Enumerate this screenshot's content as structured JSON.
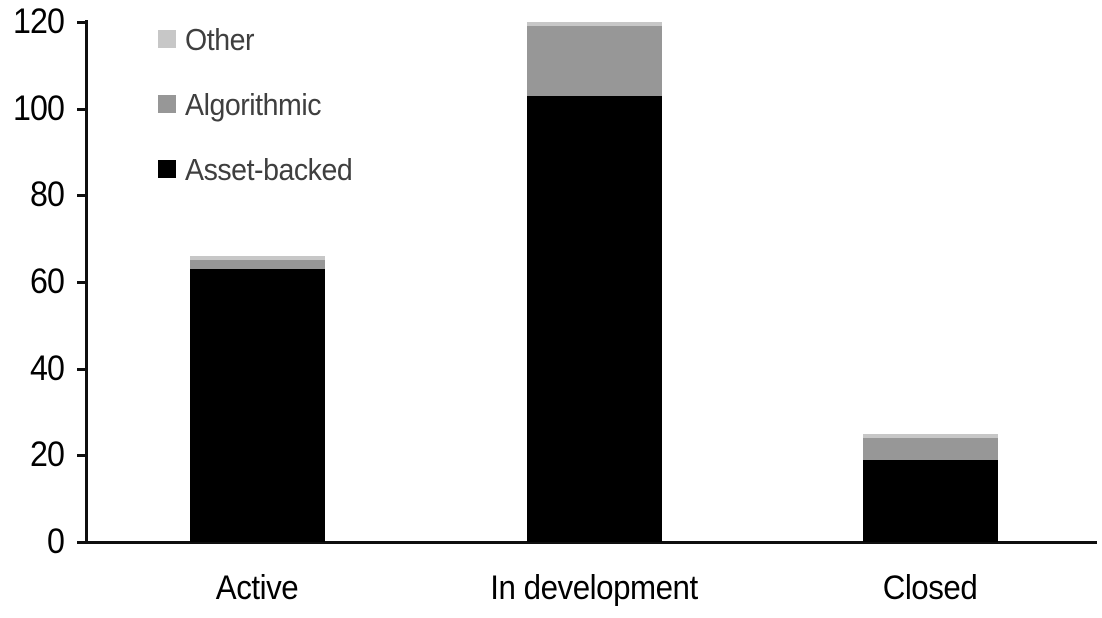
{
  "chart_data": {
    "type": "bar",
    "stacked": true,
    "title": "",
    "xlabel": "",
    "ylabel": "",
    "categories": [
      "Active",
      "In development",
      "Closed"
    ],
    "series": [
      {
        "name": "Asset-backed",
        "color": "#000000",
        "values": [
          63,
          103,
          19
        ]
      },
      {
        "name": "Algorithmic",
        "color": "#979797",
        "values": [
          2,
          16,
          5
        ]
      },
      {
        "name": "Other",
        "color": "#C7C7C7",
        "values": [
          1,
          1,
          1
        ]
      }
    ],
    "totals": [
      66,
      120,
      25
    ],
    "y_axis": {
      "ticks": [
        0,
        20,
        40,
        60,
        80,
        100,
        120
      ],
      "ylim": [
        0,
        120
      ],
      "grid": false
    },
    "legend": {
      "position": "top-left",
      "order": [
        "Other",
        "Algorithmic",
        "Asset-backed"
      ],
      "text_color": "#3F3F3F"
    },
    "axis_color": "#0f0f0f",
    "background_color": "#ffffff"
  }
}
